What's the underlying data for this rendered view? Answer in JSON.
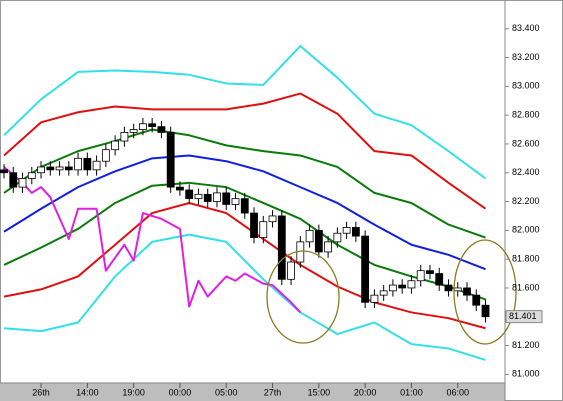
{
  "chart_data": {
    "type": "candlestick",
    "categories": [
      null,
      null,
      null,
      null,
      "26th",
      null,
      null,
      null,
      null,
      "14:00",
      null,
      null,
      null,
      null,
      "19:00",
      null,
      null,
      null,
      null,
      "00:00",
      null,
      null,
      null,
      null,
      "05:00",
      null,
      null,
      null,
      null,
      "27th",
      null,
      null,
      null,
      null,
      "15:00",
      null,
      null,
      null,
      null,
      "20:00",
      null,
      null,
      null,
      null,
      "01:00",
      null,
      null,
      null,
      null,
      "06:00",
      null,
      null,
      null
    ],
    "open": [
      82.42,
      82.4,
      82.3,
      82.36,
      82.4,
      82.44,
      82.42,
      82.44,
      82.42,
      82.5,
      82.42,
      82.48,
      82.56,
      82.62,
      82.68,
      82.7,
      82.74,
      82.72,
      82.68,
      82.3,
      82.28,
      82.22,
      82.25,
      82.2,
      82.26,
      82.18,
      82.22,
      82.12,
      81.95,
      82.06,
      82.1,
      81.66,
      81.78,
      81.92,
      82.0,
      81.85,
      81.92,
      81.98,
      82.02,
      81.96,
      81.5,
      81.55,
      81.58,
      81.62,
      81.6,
      81.65,
      81.72,
      81.7,
      81.62,
      81.58,
      81.6,
      81.55,
      81.48
    ],
    "high": [
      82.46,
      82.44,
      82.4,
      82.44,
      82.48,
      82.48,
      82.48,
      82.48,
      82.54,
      82.54,
      82.52,
      82.6,
      82.66,
      82.72,
      82.74,
      82.78,
      82.78,
      82.76,
      82.72,
      82.34,
      82.32,
      82.29,
      82.29,
      82.3,
      82.3,
      82.26,
      82.26,
      82.16,
      82.1,
      82.14,
      82.14,
      81.82,
      81.96,
      82.04,
      82.04,
      81.96,
      82.02,
      82.06,
      82.06,
      82.0,
      81.59,
      81.62,
      81.66,
      81.66,
      81.69,
      81.76,
      81.76,
      81.74,
      81.66,
      81.64,
      81.64,
      81.59,
      81.52
    ],
    "low": [
      82.36,
      82.26,
      82.26,
      82.32,
      82.36,
      82.38,
      82.38,
      82.38,
      82.38,
      82.38,
      82.38,
      82.44,
      82.52,
      82.58,
      82.64,
      82.66,
      82.68,
      82.64,
      82.26,
      82.24,
      82.18,
      82.18,
      82.16,
      82.16,
      82.14,
      82.14,
      82.08,
      81.91,
      81.91,
      82.02,
      81.62,
      81.62,
      81.74,
      81.88,
      81.81,
      81.81,
      81.88,
      81.94,
      81.92,
      81.46,
      81.46,
      81.51,
      81.54,
      81.56,
      81.56,
      81.61,
      81.66,
      81.58,
      81.54,
      81.54,
      81.51,
      81.44,
      81.36
    ],
    "close": [
      82.4,
      82.3,
      82.36,
      82.4,
      82.44,
      82.42,
      82.44,
      82.42,
      82.5,
      82.42,
      82.48,
      82.56,
      82.62,
      82.68,
      82.7,
      82.74,
      82.72,
      82.68,
      82.3,
      82.28,
      82.22,
      82.25,
      82.2,
      82.26,
      82.18,
      82.22,
      82.12,
      81.95,
      82.06,
      82.1,
      81.66,
      81.78,
      81.92,
      82.0,
      81.85,
      81.92,
      81.98,
      82.02,
      81.96,
      81.5,
      81.55,
      81.58,
      81.62,
      81.6,
      81.65,
      81.72,
      81.7,
      81.62,
      81.58,
      81.6,
      81.55,
      81.48,
      81.4
    ],
    "band_x": [
      0,
      4,
      8,
      12,
      16,
      20,
      24,
      28,
      32,
      36,
      40,
      44,
      48,
      52
    ],
    "bands": [
      {
        "color": "#33e0e8",
        "values": [
          82.66,
          82.91,
          83.1,
          83.11,
          83.1,
          83.08,
          83.02,
          83.01,
          83.28,
          83.06,
          82.81,
          82.73,
          82.55,
          82.36
        ]
      },
      {
        "color": "#e01010",
        "values": [
          82.52,
          82.75,
          82.82,
          82.86,
          82.84,
          82.84,
          82.84,
          82.88,
          82.95,
          82.81,
          82.55,
          82.52,
          82.33,
          82.15
        ]
      },
      {
        "color": "#0a7a0a",
        "values": [
          82.26,
          82.44,
          82.55,
          82.62,
          82.7,
          82.66,
          82.59,
          82.55,
          82.52,
          82.44,
          82.26,
          82.19,
          82.04,
          81.95
        ]
      },
      {
        "color": "#1020e0",
        "values": [
          81.99,
          82.15,
          82.3,
          82.41,
          82.5,
          82.52,
          82.48,
          82.41,
          82.3,
          82.19,
          82.04,
          81.9,
          81.83,
          81.73
        ]
      },
      {
        "color": "#0a7a0a",
        "values": [
          81.76,
          81.88,
          82.01,
          82.19,
          82.31,
          82.33,
          82.3,
          82.19,
          82.08,
          81.9,
          81.76,
          81.68,
          81.61,
          81.52
        ]
      },
      {
        "color": "#e01010",
        "values": [
          81.54,
          81.59,
          81.68,
          81.9,
          82.12,
          82.19,
          82.12,
          81.94,
          81.76,
          81.61,
          81.5,
          81.43,
          81.39,
          81.32
        ]
      },
      {
        "color": "#33e0e8",
        "values": [
          81.32,
          81.3,
          81.36,
          81.68,
          81.92,
          81.97,
          81.92,
          81.66,
          81.43,
          81.28,
          81.36,
          81.21,
          81.18,
          81.1
        ]
      }
    ],
    "lag_line": {
      "color": "#e020e0",
      "x": [
        0,
        2,
        3,
        4,
        5,
        7,
        8,
        10,
        11,
        13,
        14,
        15,
        17,
        19,
        20,
        21,
        22,
        24,
        25,
        26,
        28,
        29,
        31,
        32
      ],
      "values": [
        82.44,
        82.33,
        82.26,
        82.3,
        82.23,
        81.94,
        82.15,
        82.15,
        81.72,
        81.9,
        81.79,
        82.12,
        82.08,
        82.01,
        81.47,
        81.65,
        81.54,
        81.68,
        81.65,
        81.7,
        81.63,
        81.62,
        81.5,
        81.43
      ]
    },
    "last_price": 81.401,
    "ylim": [
      80.94,
      83.53
    ],
    "yticks": [
      {
        "value": 83.4,
        "label": "83.400"
      },
      {
        "value": 83.2,
        "label": "83.200"
      },
      {
        "value": 83.0,
        "label": "83.000"
      },
      {
        "value": 82.8,
        "label": "82.800"
      },
      {
        "value": 82.6,
        "label": "82.600"
      },
      {
        "value": 82.4,
        "label": "82.400"
      },
      {
        "value": 82.2,
        "label": "82.200"
      },
      {
        "value": 82.0,
        "label": "82.000"
      },
      {
        "value": 81.8,
        "label": "81.800"
      },
      {
        "value": 81.6,
        "label": "81.600"
      },
      {
        "value": 81.4,
        "label": "81.400"
      },
      {
        "value": 81.2,
        "label": "81.200"
      },
      {
        "value": 81.0,
        "label": "81.000"
      }
    ]
  }
}
